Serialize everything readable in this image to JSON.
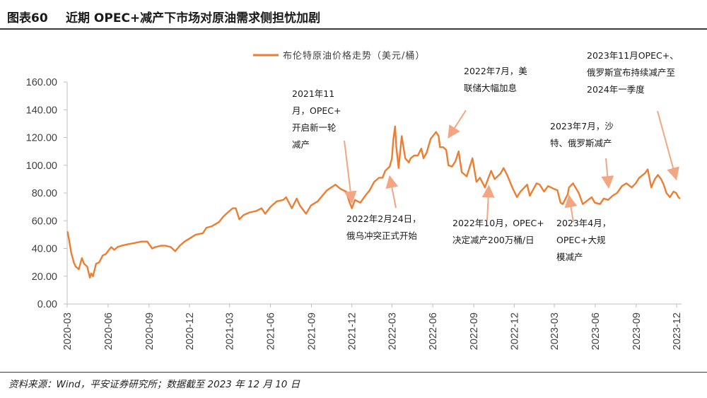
{
  "figure": {
    "label": "图表60",
    "title": "近期 OPEC+减产下市场对原油需求侧担忧加剧"
  },
  "source": "资料来源：Wind，平安证券研究所；数据截至 2023 年 12 月 10 日",
  "chart_data": {
    "type": "line",
    "series": [
      {
        "name": "布伦特原油价格走势（美元/桶）",
        "color": "#ED7D31",
        "points": [
          [
            "2020-03-02",
            52
          ],
          [
            "2020-03-06",
            45
          ],
          [
            "2020-03-10",
            37
          ],
          [
            "2020-03-16",
            30
          ],
          [
            "2020-03-20",
            27
          ],
          [
            "2020-03-27",
            25
          ],
          [
            "2020-04-03",
            33
          ],
          [
            "2020-04-08",
            29
          ],
          [
            "2020-04-15",
            27
          ],
          [
            "2020-04-21",
            19
          ],
          [
            "2020-04-24",
            22
          ],
          [
            "2020-04-28",
            20
          ],
          [
            "2020-05-05",
            29
          ],
          [
            "2020-05-12",
            30
          ],
          [
            "2020-05-20",
            35
          ],
          [
            "2020-05-27",
            36
          ],
          [
            "2020-06-03",
            39
          ],
          [
            "2020-06-08",
            41
          ],
          [
            "2020-06-15",
            39
          ],
          [
            "2020-06-22",
            41
          ],
          [
            "2020-07-01",
            42
          ],
          [
            "2020-07-15",
            43
          ],
          [
            "2020-08-01",
            44
          ],
          [
            "2020-08-15",
            45
          ],
          [
            "2020-08-28",
            45
          ],
          [
            "2020-09-08",
            40
          ],
          [
            "2020-09-15",
            41
          ],
          [
            "2020-09-28",
            42
          ],
          [
            "2020-10-08",
            42
          ],
          [
            "2020-10-20",
            41
          ],
          [
            "2020-10-30",
            38
          ],
          [
            "2020-11-09",
            42
          ],
          [
            "2020-11-20",
            45
          ],
          [
            "2020-11-30",
            47
          ],
          [
            "2020-12-15",
            50
          ],
          [
            "2020-12-31",
            51
          ],
          [
            "2021-01-08",
            55
          ],
          [
            "2021-01-20",
            56
          ],
          [
            "2021-02-05",
            59
          ],
          [
            "2021-02-15",
            63
          ],
          [
            "2021-02-25",
            66
          ],
          [
            "2021-03-08",
            69
          ],
          [
            "2021-03-15",
            69
          ],
          [
            "2021-03-23",
            61
          ],
          [
            "2021-04-01",
            64
          ],
          [
            "2021-04-15",
            66
          ],
          [
            "2021-04-30",
            67
          ],
          [
            "2021-05-12",
            69
          ],
          [
            "2021-05-20",
            65
          ],
          [
            "2021-06-01",
            70
          ],
          [
            "2021-06-15",
            74
          ],
          [
            "2021-06-30",
            75
          ],
          [
            "2021-07-06",
            77
          ],
          [
            "2021-07-19",
            69
          ],
          [
            "2021-07-30",
            76
          ],
          [
            "2021-08-06",
            71
          ],
          [
            "2021-08-20",
            65
          ],
          [
            "2021-08-31",
            71
          ],
          [
            "2021-09-15",
            74
          ],
          [
            "2021-09-28",
            79
          ],
          [
            "2021-10-06",
            82
          ],
          [
            "2021-10-25",
            86
          ],
          [
            "2021-11-05",
            83
          ],
          [
            "2021-11-18",
            81
          ],
          [
            "2021-11-26",
            73
          ],
          [
            "2021-12-01",
            69
          ],
          [
            "2021-12-08",
            75
          ],
          [
            "2021-12-20",
            73
          ],
          [
            "2021-12-31",
            78
          ],
          [
            "2022-01-10",
            82
          ],
          [
            "2022-01-20",
            88
          ],
          [
            "2022-01-31",
            91
          ],
          [
            "2022-02-08",
            91
          ],
          [
            "2022-02-14",
            96
          ],
          [
            "2022-02-24",
            99
          ],
          [
            "2022-03-01",
            105
          ],
          [
            "2022-03-04",
            118
          ],
          [
            "2022-03-08",
            128
          ],
          [
            "2022-03-11",
            113
          ],
          [
            "2022-03-16",
            98
          ],
          [
            "2022-03-23",
            121
          ],
          [
            "2022-03-31",
            105
          ],
          [
            "2022-04-08",
            102
          ],
          [
            "2022-04-12",
            105
          ],
          [
            "2022-04-20",
            107
          ],
          [
            "2022-04-28",
            107
          ],
          [
            "2022-05-06",
            112
          ],
          [
            "2022-05-11",
            105
          ],
          [
            "2022-05-18",
            109
          ],
          [
            "2022-05-27",
            119
          ],
          [
            "2022-06-08",
            124
          ],
          [
            "2022-06-14",
            121
          ],
          [
            "2022-06-17",
            113
          ],
          [
            "2022-06-24",
            113
          ],
          [
            "2022-07-01",
            111
          ],
          [
            "2022-07-06",
            100
          ],
          [
            "2022-07-14",
            99
          ],
          [
            "2022-07-22",
            103
          ],
          [
            "2022-07-29",
            110
          ],
          [
            "2022-08-05",
            95
          ],
          [
            "2022-08-16",
            92
          ],
          [
            "2022-08-29",
            105
          ],
          [
            "2022-09-07",
            88
          ],
          [
            "2022-09-15",
            91
          ],
          [
            "2022-09-26",
            84
          ],
          [
            "2022-10-04",
            91
          ],
          [
            "2022-10-10",
            96
          ],
          [
            "2022-10-18",
            90
          ],
          [
            "2022-10-31",
            94
          ],
          [
            "2022-11-07",
            98
          ],
          [
            "2022-11-15",
            93
          ],
          [
            "2022-11-28",
            83
          ],
          [
            "2022-12-07",
            77
          ],
          [
            "2022-12-15",
            81
          ],
          [
            "2022-12-30",
            86
          ],
          [
            "2023-01-05",
            78
          ],
          [
            "2023-01-20",
            87
          ],
          [
            "2023-01-27",
            86
          ],
          [
            "2023-02-06",
            81
          ],
          [
            "2023-02-15",
            85
          ],
          [
            "2023-02-28",
            83
          ],
          [
            "2023-03-08",
            82
          ],
          [
            "2023-03-15",
            73
          ],
          [
            "2023-03-20",
            72
          ],
          [
            "2023-03-31",
            79
          ],
          [
            "2023-04-03",
            84
          ],
          [
            "2023-04-12",
            87
          ],
          [
            "2023-04-25",
            80
          ],
          [
            "2023-05-04",
            72
          ],
          [
            "2023-05-12",
            74
          ],
          [
            "2023-05-24",
            77
          ],
          [
            "2023-05-31",
            73
          ],
          [
            "2023-06-12",
            72
          ],
          [
            "2023-06-20",
            76
          ],
          [
            "2023-06-30",
            75
          ],
          [
            "2023-07-10",
            78
          ],
          [
            "2023-07-20",
            80
          ],
          [
            "2023-07-31",
            85
          ],
          [
            "2023-08-10",
            87
          ],
          [
            "2023-08-22",
            84
          ],
          [
            "2023-08-31",
            87
          ],
          [
            "2023-09-08",
            91
          ],
          [
            "2023-09-20",
            94
          ],
          [
            "2023-09-27",
            97
          ],
          [
            "2023-10-05",
            84
          ],
          [
            "2023-10-13",
            90
          ],
          [
            "2023-10-20",
            93
          ],
          [
            "2023-10-27",
            90
          ],
          [
            "2023-11-02",
            86
          ],
          [
            "2023-11-08",
            80
          ],
          [
            "2023-11-16",
            77
          ],
          [
            "2023-11-24",
            81
          ],
          [
            "2023-11-30",
            80
          ],
          [
            "2023-12-05",
            77
          ],
          [
            "2023-12-08",
            76
          ]
        ]
      }
    ],
    "xticks": [
      "2020-03",
      "2020-06",
      "2020-09",
      "2020-12",
      "2021-03",
      "2021-06",
      "2021-09",
      "2021-12",
      "2022-03",
      "2022-06",
      "2022-09",
      "2022-12",
      "2023-03",
      "2023-06",
      "2023-09",
      "2023-12"
    ],
    "yticks": [
      "0.00",
      "20.00",
      "40.00",
      "60.00",
      "80.00",
      "100.00",
      "120.00",
      "140.00",
      "160.00"
    ],
    "xlim": [
      "2020-03-01",
      "2023-12-12"
    ],
    "ylim": [
      0,
      160
    ],
    "legend_position": "top-center",
    "grid": false,
    "annotations": [
      {
        "lines": [
          "2021年11",
          "月，OPEC+",
          "开启新一轮",
          "减产"
        ],
        "arrow_color": "#F4A582",
        "target": [
          "2021-12-01",
          73
        ]
      },
      {
        "lines": [
          "2022年2月24日，",
          "俄乌冲突正式开始"
        ],
        "arrow_color": "#F4A582",
        "target": [
          "2022-02-24",
          92
        ]
      },
      {
        "lines": [
          "2022年7月，美",
          "联储大幅加息"
        ],
        "arrow_color": "#F4A582",
        "target": [
          "2022-07-06",
          120
        ]
      },
      {
        "lines": [
          "2022年10月，OPEC+",
          "决定减产200万桶/日"
        ],
        "arrow_color": "#F4A582",
        "target": [
          "2022-10-05",
          85
        ]
      },
      {
        "lines": [
          "2023年7月，沙",
          "特、俄罗斯减产"
        ],
        "arrow_color": "#F4A582",
        "target": [
          "2023-07-01",
          84
        ]
      },
      {
        "lines": [
          "2023年4月，",
          "OPEC+大规",
          "模减产"
        ],
        "arrow_color": "#F4A582",
        "target": [
          "2023-04-03",
          78
        ]
      },
      {
        "lines": [
          "2023年11月OPEC+、",
          "俄罗斯宣布持续减产至",
          "2024年一季度"
        ],
        "arrow_color": "#F4A582",
        "target": [
          "2023-11-30",
          90
        ]
      }
    ]
  }
}
